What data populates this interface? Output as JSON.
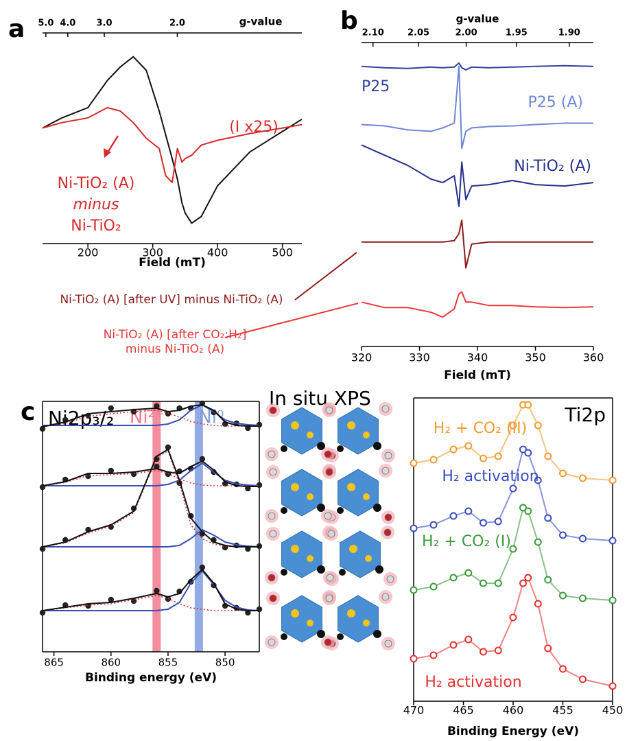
{
  "illustration": {
    "title": "In situ XPS"
  },
  "chart_data": [
    {
      "type": "line",
      "panel": "a",
      "xlabel": "Field (mT)",
      "x2label": "g-value",
      "xlim": [
        130,
        530
      ],
      "xticks": [
        200,
        300,
        400,
        500
      ],
      "x2lim": [
        5.2,
        1.275
      ],
      "x2scale": "reciprocal",
      "x2ticks": [
        {
          "value": 5.0,
          "label": "5.0"
        },
        {
          "value": 4.0,
          "label": "4.0"
        },
        {
          "value": 3.0,
          "label": "3.0"
        },
        {
          "value": 2.0,
          "label": "2.0"
        }
      ],
      "ylim": [
        0,
        310
      ],
      "annotations": [
        "(I x25)",
        "Ni-TiO₂ (A)",
        "minus",
        "Ni-TiO₂"
      ],
      "x": [
        130,
        160,
        200,
        230,
        250,
        270,
        290,
        310,
        320,
        330,
        338,
        345,
        350,
        360,
        375,
        400,
        450,
        500,
        530
      ],
      "series": [
        {
          "color": "#111111",
          "style": "line",
          "values": [
            170,
            185,
            200,
            240,
            260,
            275,
            255,
            195,
            160,
            125,
            95,
            60,
            45,
            30,
            40,
            85,
            135,
            165,
            183
          ]
        },
        {
          "color": "#d82a2a",
          "style": "line",
          "values": [
            170,
            178,
            185,
            200,
            195,
            178,
            155,
            140,
            100,
            90,
            140,
            120,
            125,
            130,
            145,
            152,
            162,
            170,
            175
          ]
        }
      ]
    },
    {
      "type": "line",
      "panel": "b",
      "xlabel": "Field (mT)",
      "x2label": "g-value",
      "xlim": [
        320,
        360
      ],
      "xticks": [
        320,
        330,
        340,
        350,
        360
      ],
      "x2lim": [
        2.113,
        1.878
      ],
      "x2scale": "reciprocal",
      "x2ticks": [
        {
          "value": 2.1,
          "label": "2.10"
        },
        2.05,
        {
          "value": 2.0,
          "label": "2.00"
        },
        1.95,
        {
          "value": 1.9,
          "label": "1.90"
        }
      ],
      "ylim": [
        0,
        445
      ],
      "x": [
        320,
        324,
        328,
        332,
        334,
        336,
        336.8,
        337.3,
        338,
        339,
        342,
        346,
        350,
        355,
        360
      ],
      "series": [
        {
          "name": "P25",
          "color": "#3040a0",
          "style": "line",
          "values": [
            410,
            408,
            407,
            409,
            408,
            409,
            415,
            408,
            405,
            409,
            408,
            409,
            410,
            411,
            410
          ]
        },
        {
          "name": "P25 (A)",
          "color": "#6f86d6",
          "style": "line",
          "values": [
            325,
            323,
            317,
            315,
            320,
            327,
            410,
            290,
            315,
            320,
            322,
            323,
            325,
            327,
            327
          ]
        },
        {
          "name": "Ni-TiO₂ (A)",
          "color": "#26308c",
          "style": "line",
          "values": [
            295,
            280,
            265,
            245,
            240,
            250,
            205,
            270,
            215,
            235,
            237,
            243,
            237,
            235,
            240
          ]
        },
        {
          "name": "Ni-TiO₂ (A) [after UV] minus Ni-TiO₂ (A)",
          "color": "#8c1c1c",
          "style": "line",
          "values": [
            153,
            153,
            153,
            153,
            153,
            155,
            165,
            185,
            115,
            150,
            153,
            153,
            153,
            153,
            153
          ]
        },
        {
          "name": "Ni-TiO₂ (A) [after CO₂:H₂] minus Ni-TiO₂ (A)",
          "color": "#e8393a",
          "style": "line",
          "values": [
            65,
            57,
            57,
            50,
            43,
            55,
            77,
            80,
            65,
            65,
            60,
            60,
            58,
            57,
            58
          ]
        }
      ]
    },
    {
      "type": "line",
      "panel": "c",
      "title": "Ni2p₃/₂",
      "xlabel": "Binding energy (eV)",
      "xlim": [
        866,
        847
      ],
      "xticks": [
        865,
        860,
        855,
        850
      ],
      "ylim": [
        0,
        365
      ],
      "bands": [
        {
          "label": "Ni²⁺",
          "x": 856,
          "color": "#f07a8c"
        },
        {
          "label": "Ni⁰",
          "x": 852.3,
          "color": "#7f9ee0"
        }
      ],
      "x": [
        866,
        864,
        862,
        860,
        858,
        856,
        855,
        854,
        853,
        852,
        851,
        850,
        849,
        848,
        847
      ],
      "series": [
        {
          "color": "#222222",
          "style": "dots",
          "values": [
            325,
            338,
            344,
            355,
            350,
            358,
            347,
            355,
            355,
            362,
            349,
            332,
            333,
            326,
            331
          ]
        },
        {
          "color": "#d83030",
          "style": "dotted",
          "values": [
            328,
            333,
            343,
            347,
            350,
            352,
            348,
            342,
            336,
            332,
            330,
            329,
            329,
            329,
            329
          ]
        },
        {
          "color": "#3a4cb0",
          "style": "line",
          "values": [
            330,
            330,
            330,
            330,
            330,
            330,
            332,
            338,
            352,
            360,
            350,
            338,
            333,
            331,
            330
          ]
        },
        {
          "color": "#111111",
          "style": "line",
          "values": [
            328,
            335,
            347,
            350,
            353,
            355,
            350,
            352,
            358,
            360,
            352,
            335,
            330,
            329,
            329
          ]
        },
        {
          "color": "#222222",
          "style": "dots",
          "values": [
            240,
            251,
            256,
            264,
            259,
            270,
            259,
            263,
            267,
            281,
            262,
            245,
            244,
            238,
            243
          ]
        },
        {
          "color": "#d83030",
          "style": "dotted",
          "values": [
            242,
            247,
            257,
            258,
            260,
            264,
            260,
            252,
            246,
            243,
            242,
            242,
            242,
            242,
            242
          ]
        },
        {
          "color": "#3a4cb0",
          "style": "line",
          "values": [
            242,
            242,
            242,
            242,
            242,
            242,
            244,
            250,
            264,
            275,
            262,
            250,
            245,
            243,
            242
          ]
        },
        {
          "color": "#111111",
          "style": "line",
          "values": [
            242,
            248,
            260,
            260,
            262,
            267,
            262,
            260,
            270,
            278,
            265,
            248,
            242,
            241,
            241
          ]
        },
        {
          "color": "#222222",
          "style": "dots",
          "values": [
            150,
            163,
            178,
            182,
            209,
            281,
            298,
            246,
            198,
            172,
            163,
            152,
            155,
            150,
            154
          ]
        },
        {
          "color": "#d83030",
          "style": "dotted",
          "values": [
            153,
            159,
            173,
            183,
            203,
            283,
            293,
            245,
            185,
            165,
            157,
            154,
            153,
            153,
            153
          ]
        },
        {
          "color": "#3a4cb0",
          "style": "line",
          "values": [
            153,
            153,
            153,
            153,
            153,
            153,
            153,
            155,
            165,
            178,
            170,
            160,
            156,
            154,
            153
          ]
        },
        {
          "color": "#111111",
          "style": "line",
          "values": [
            153,
            160,
            175,
            185,
            205,
            285,
            295,
            250,
            195,
            175,
            160,
            155,
            153,
            153,
            153
          ]
        },
        {
          "color": "#222222",
          "style": "dots",
          "values": [
            57,
            68,
            67,
            76,
            74,
            89,
            77,
            88,
            102,
            123,
            97,
            67,
            64,
            57,
            62
          ]
        },
        {
          "color": "#d83030",
          "style": "dotted",
          "values": [
            60,
            64,
            68,
            70,
            76,
            82,
            78,
            70,
            64,
            62,
            60,
            60,
            60,
            60,
            60
          ]
        },
        {
          "color": "#3a4cb0",
          "style": "line",
          "values": [
            60,
            60,
            60,
            60,
            60,
            60,
            62,
            72,
            100,
            118,
            98,
            75,
            65,
            61,
            60
          ]
        },
        {
          "color": "#111111",
          "style": "line",
          "values": [
            60,
            65,
            70,
            72,
            78,
            85,
            80,
            85,
            105,
            120,
            100,
            70,
            62,
            60,
            60
          ]
        }
      ]
    },
    {
      "type": "line",
      "title": "Ti2p",
      "xlabel": "Binding Energy (eV)",
      "xlim": [
        470,
        450
      ],
      "xticks": [
        470,
        465,
        460,
        455,
        450
      ],
      "ylim": [
        0,
        442
      ],
      "x": [
        470,
        468,
        466,
        464.5,
        463,
        461.5,
        460,
        459,
        458.5,
        457.5,
        456.5,
        455,
        453,
        450
      ],
      "series": [
        {
          "name": "H₂ + CO₂ (II)",
          "color": "#f39a30",
          "style": "circles",
          "values": [
            347,
            352,
            367,
            372,
            354,
            357,
            402,
            432,
            432,
            402,
            357,
            332,
            325,
            322
          ]
        },
        {
          "name": "H₂ activation",
          "color": "#3a4cc0",
          "style": "circles",
          "values": [
            252,
            257,
            270,
            277,
            260,
            262,
            310,
            367,
            362,
            322,
            267,
            242,
            237,
            234
          ]
        },
        {
          "name": "H₂ + CO₂ (I)",
          "color": "#3a9a3a",
          "style": "circles",
          "values": [
            162,
            167,
            180,
            187,
            172,
            172,
            222,
            282,
            277,
            232,
            177,
            154,
            150,
            147
          ]
        },
        {
          "name": "H₂ activation",
          "color": "#e83030",
          "style": "circles",
          "values": [
            62,
            67,
            82,
            90,
            72,
            74,
            122,
            172,
            180,
            142,
            77,
            47,
            32,
            22
          ]
        }
      ]
    }
  ]
}
